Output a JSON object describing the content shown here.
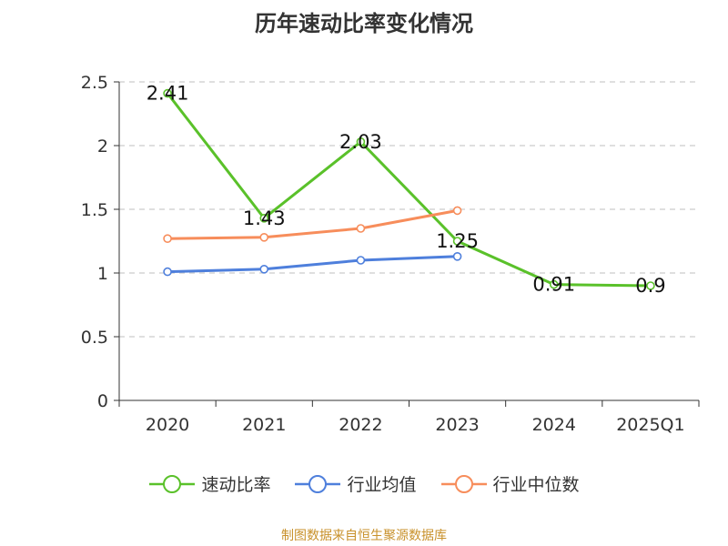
{
  "title": "历年速动比率变化情况",
  "source": "制图数据来自恒生聚源数据库",
  "chart_data": {
    "type": "line",
    "title": "历年速动比率变化情况",
    "categories": [
      "2020",
      "2021",
      "2022",
      "2023",
      "2024",
      "2025Q1"
    ],
    "ylim": [
      0,
      2.5
    ],
    "yticks": [
      "0",
      "0.5",
      "1",
      "1.5",
      "2",
      "2.5"
    ],
    "grid": true,
    "legend_position": "bottom",
    "series": [
      {
        "name": "速动比率",
        "color": "#5ac12a",
        "values": [
          2.41,
          1.43,
          2.03,
          1.25,
          0.91,
          0.9
        ],
        "labels": [
          "2.41",
          "1.43",
          "2.03",
          "1.25",
          "0.91",
          "0.9"
        ],
        "show_labels": true
      },
      {
        "name": "行业均值",
        "color": "#4e7fdc",
        "values": [
          1.01,
          1.03,
          1.1,
          1.13,
          null,
          null
        ],
        "show_labels": false
      },
      {
        "name": "行业中位数",
        "color": "#f78d5b",
        "values": [
          1.27,
          1.28,
          1.35,
          1.49,
          null,
          null
        ],
        "show_labels": false
      }
    ]
  }
}
